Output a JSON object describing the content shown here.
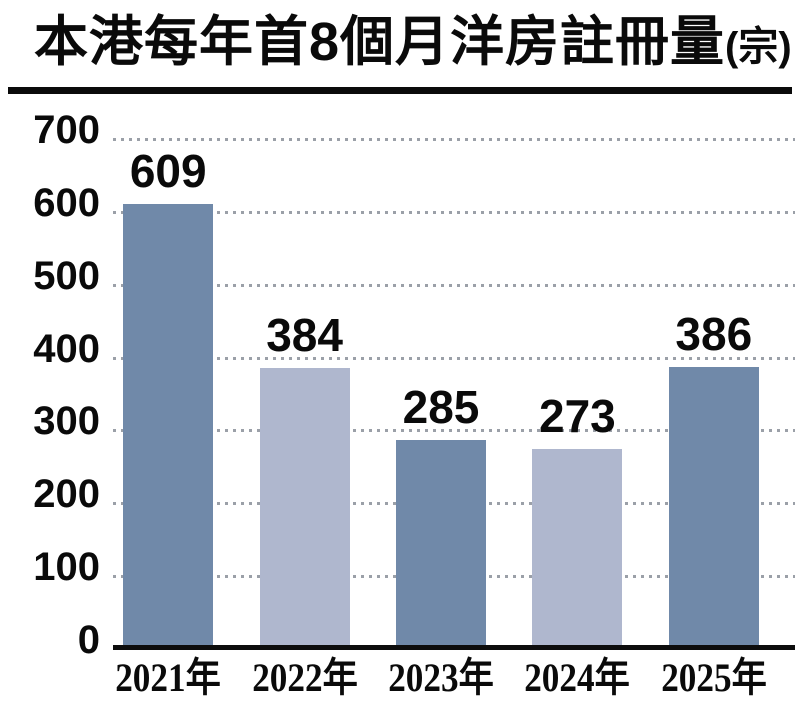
{
  "title": {
    "main": "本港每年首8個月洋房註冊量",
    "unit": "(宗)"
  },
  "colors": {
    "bar_dark": "#7089A9",
    "bar_light": "#AFB7CE",
    "gridline": "#9ba0a8",
    "axis": "#0d0d0d",
    "text": "#0a0a0a",
    "background": "#ffffff"
  },
  "chart_data": {
    "type": "bar",
    "title": "本港每年首8個月洋房註冊量(宗)",
    "categories": [
      "2021年",
      "2022年",
      "2023年",
      "2024年",
      "2025年"
    ],
    "values": [
      609,
      384,
      285,
      273,
      386
    ],
    "value_labels_shown": true,
    "xlabel": "",
    "ylabel": "",
    "ylim": [
      0,
      700
    ],
    "yticks": [
      0,
      100,
      200,
      300,
      400,
      500,
      600,
      700
    ],
    "grid": "horizontal-dotted",
    "legend": "none",
    "bar_color_pattern_alternating": [
      "#7089A9",
      "#AFB7CE"
    ]
  }
}
